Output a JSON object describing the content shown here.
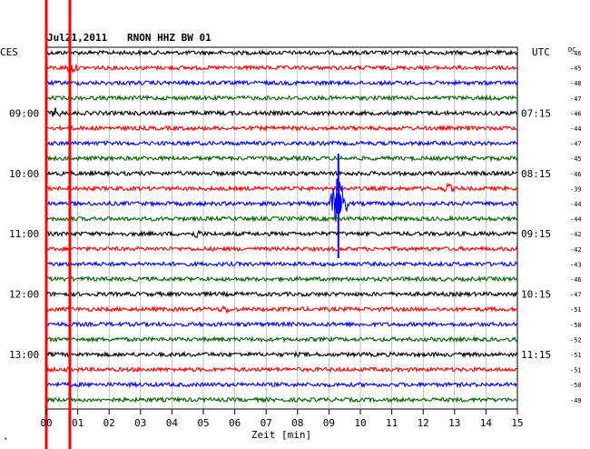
{
  "header": {
    "date": "Jul21,2011",
    "station": "RNON HHZ BW 01"
  },
  "timezone_left": "CES",
  "timezone_right": "UTC",
  "dc_header": "DC",
  "footer_mark": "*",
  "chart_data": {
    "type": "line",
    "xlabel": "Zeit [min]",
    "xlim": [
      0,
      15
    ],
    "x_ticks": [
      "00",
      "01",
      "02",
      "03",
      "04",
      "05",
      "06",
      "07",
      "08",
      "09",
      "10",
      "11",
      "12",
      "13",
      "14",
      "15"
    ],
    "rows": 24,
    "trace_colors": [
      "#000000",
      "#ff0000",
      "#0000ff",
      "#006400"
    ],
    "left_time_labels": [
      {
        "row": 4,
        "text": "09:00"
      },
      {
        "row": 8,
        "text": "10:00"
      },
      {
        "row": 12,
        "text": "11:00"
      },
      {
        "row": 16,
        "text": "12:00"
      },
      {
        "row": 20,
        "text": "13:00"
      }
    ],
    "right_time_labels": [
      {
        "row": 4,
        "text": "07:15"
      },
      {
        "row": 8,
        "text": "08:15"
      },
      {
        "row": 12,
        "text": "09:15"
      },
      {
        "row": 16,
        "text": "10:15"
      },
      {
        "row": 20,
        "text": "11:15"
      }
    ],
    "dc_offsets": [
      "-46",
      "-45",
      "-48",
      "-47",
      "-46",
      "-44",
      "-47",
      "-45",
      "-46",
      "-39",
      "-44",
      "-44",
      "-42",
      "-42",
      "-43",
      "-46",
      "-47",
      "-51",
      "-50",
      "-52",
      "-51",
      "-51",
      "-50",
      "-49"
    ],
    "events": [
      {
        "row": 1,
        "x": 0.8,
        "amp": 1.6
      },
      {
        "row": 4,
        "x": 0.3,
        "amp": 1.4
      },
      {
        "row": 9,
        "x": 12.8,
        "amp": 1.3
      },
      {
        "row": 10,
        "x": 9.3,
        "amp": 8.0
      },
      {
        "row": 12,
        "x": 4.8,
        "amp": 1.2
      },
      {
        "row": 17,
        "x": 5.7,
        "amp": 1.2
      }
    ],
    "spikes": [
      {
        "x": 0.0,
        "color": "#ff0000"
      },
      {
        "x": 0.75,
        "color": "#ff0000"
      }
    ]
  }
}
